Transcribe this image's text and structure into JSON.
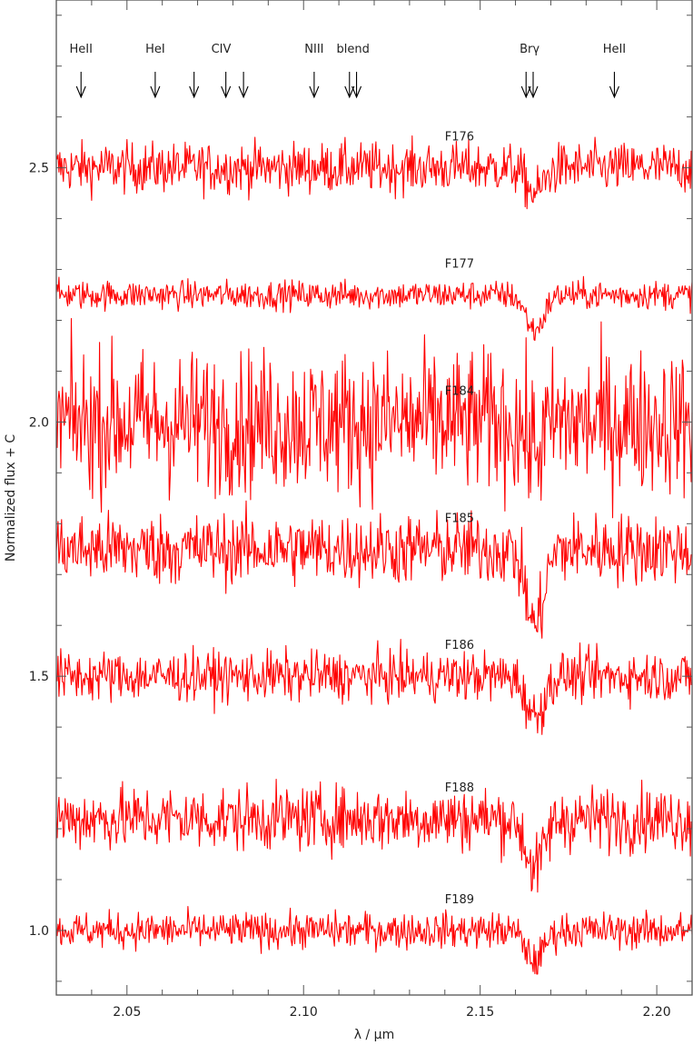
{
  "chart_data": {
    "type": "line",
    "xlabel": "λ / μm",
    "ylabel": "Normalized flux + C",
    "xlim": [
      2.03,
      2.21
    ],
    "ylim": [
      0.873,
      2.83
    ],
    "xticks": [
      "2.05",
      "2.10",
      "2.15",
      "2.20"
    ],
    "yticks": [
      "1.0",
      "1.5",
      "2.0",
      "2.5"
    ],
    "grid": false,
    "line_color": "#ff0000",
    "series": [
      {
        "name": "F176",
        "continuum": 2.5,
        "noise": 0.035,
        "bry_depth": 0.05
      },
      {
        "name": "F177",
        "continuum": 2.25,
        "noise": 0.02,
        "bry_depth": 0.07
      },
      {
        "name": "F184",
        "continuum": 2.0,
        "noise": 0.1,
        "bry_depth": 0.05
      },
      {
        "name": "F185",
        "continuum": 1.75,
        "noise": 0.05,
        "bry_depth": 0.15
      },
      {
        "name": "F186",
        "continuum": 1.5,
        "noise": 0.035,
        "bry_depth": 0.08
      },
      {
        "name": "F188",
        "continuum": 1.22,
        "noise": 0.045,
        "bry_depth": 0.1
      },
      {
        "name": "F189",
        "continuum": 1.0,
        "noise": 0.025,
        "bry_depth": 0.06
      }
    ],
    "label_x": 2.14,
    "annotations": [
      {
        "label": "HeII",
        "wavelengths": [
          2.037
        ]
      },
      {
        "label": "HeI",
        "wavelengths": [
          2.058
        ]
      },
      {
        "label": "CIV",
        "wavelengths": [
          2.069,
          2.078,
          2.083
        ]
      },
      {
        "label": "NIII",
        "wavelengths": [
          2.103
        ]
      },
      {
        "label": "blend",
        "wavelengths": [
          2.113,
          2.115
        ]
      },
      {
        "label": "Brγ",
        "wavelengths": [
          2.163,
          2.165
        ]
      },
      {
        "label": "HeII",
        "wavelengths": [
          2.188
        ]
      }
    ]
  }
}
